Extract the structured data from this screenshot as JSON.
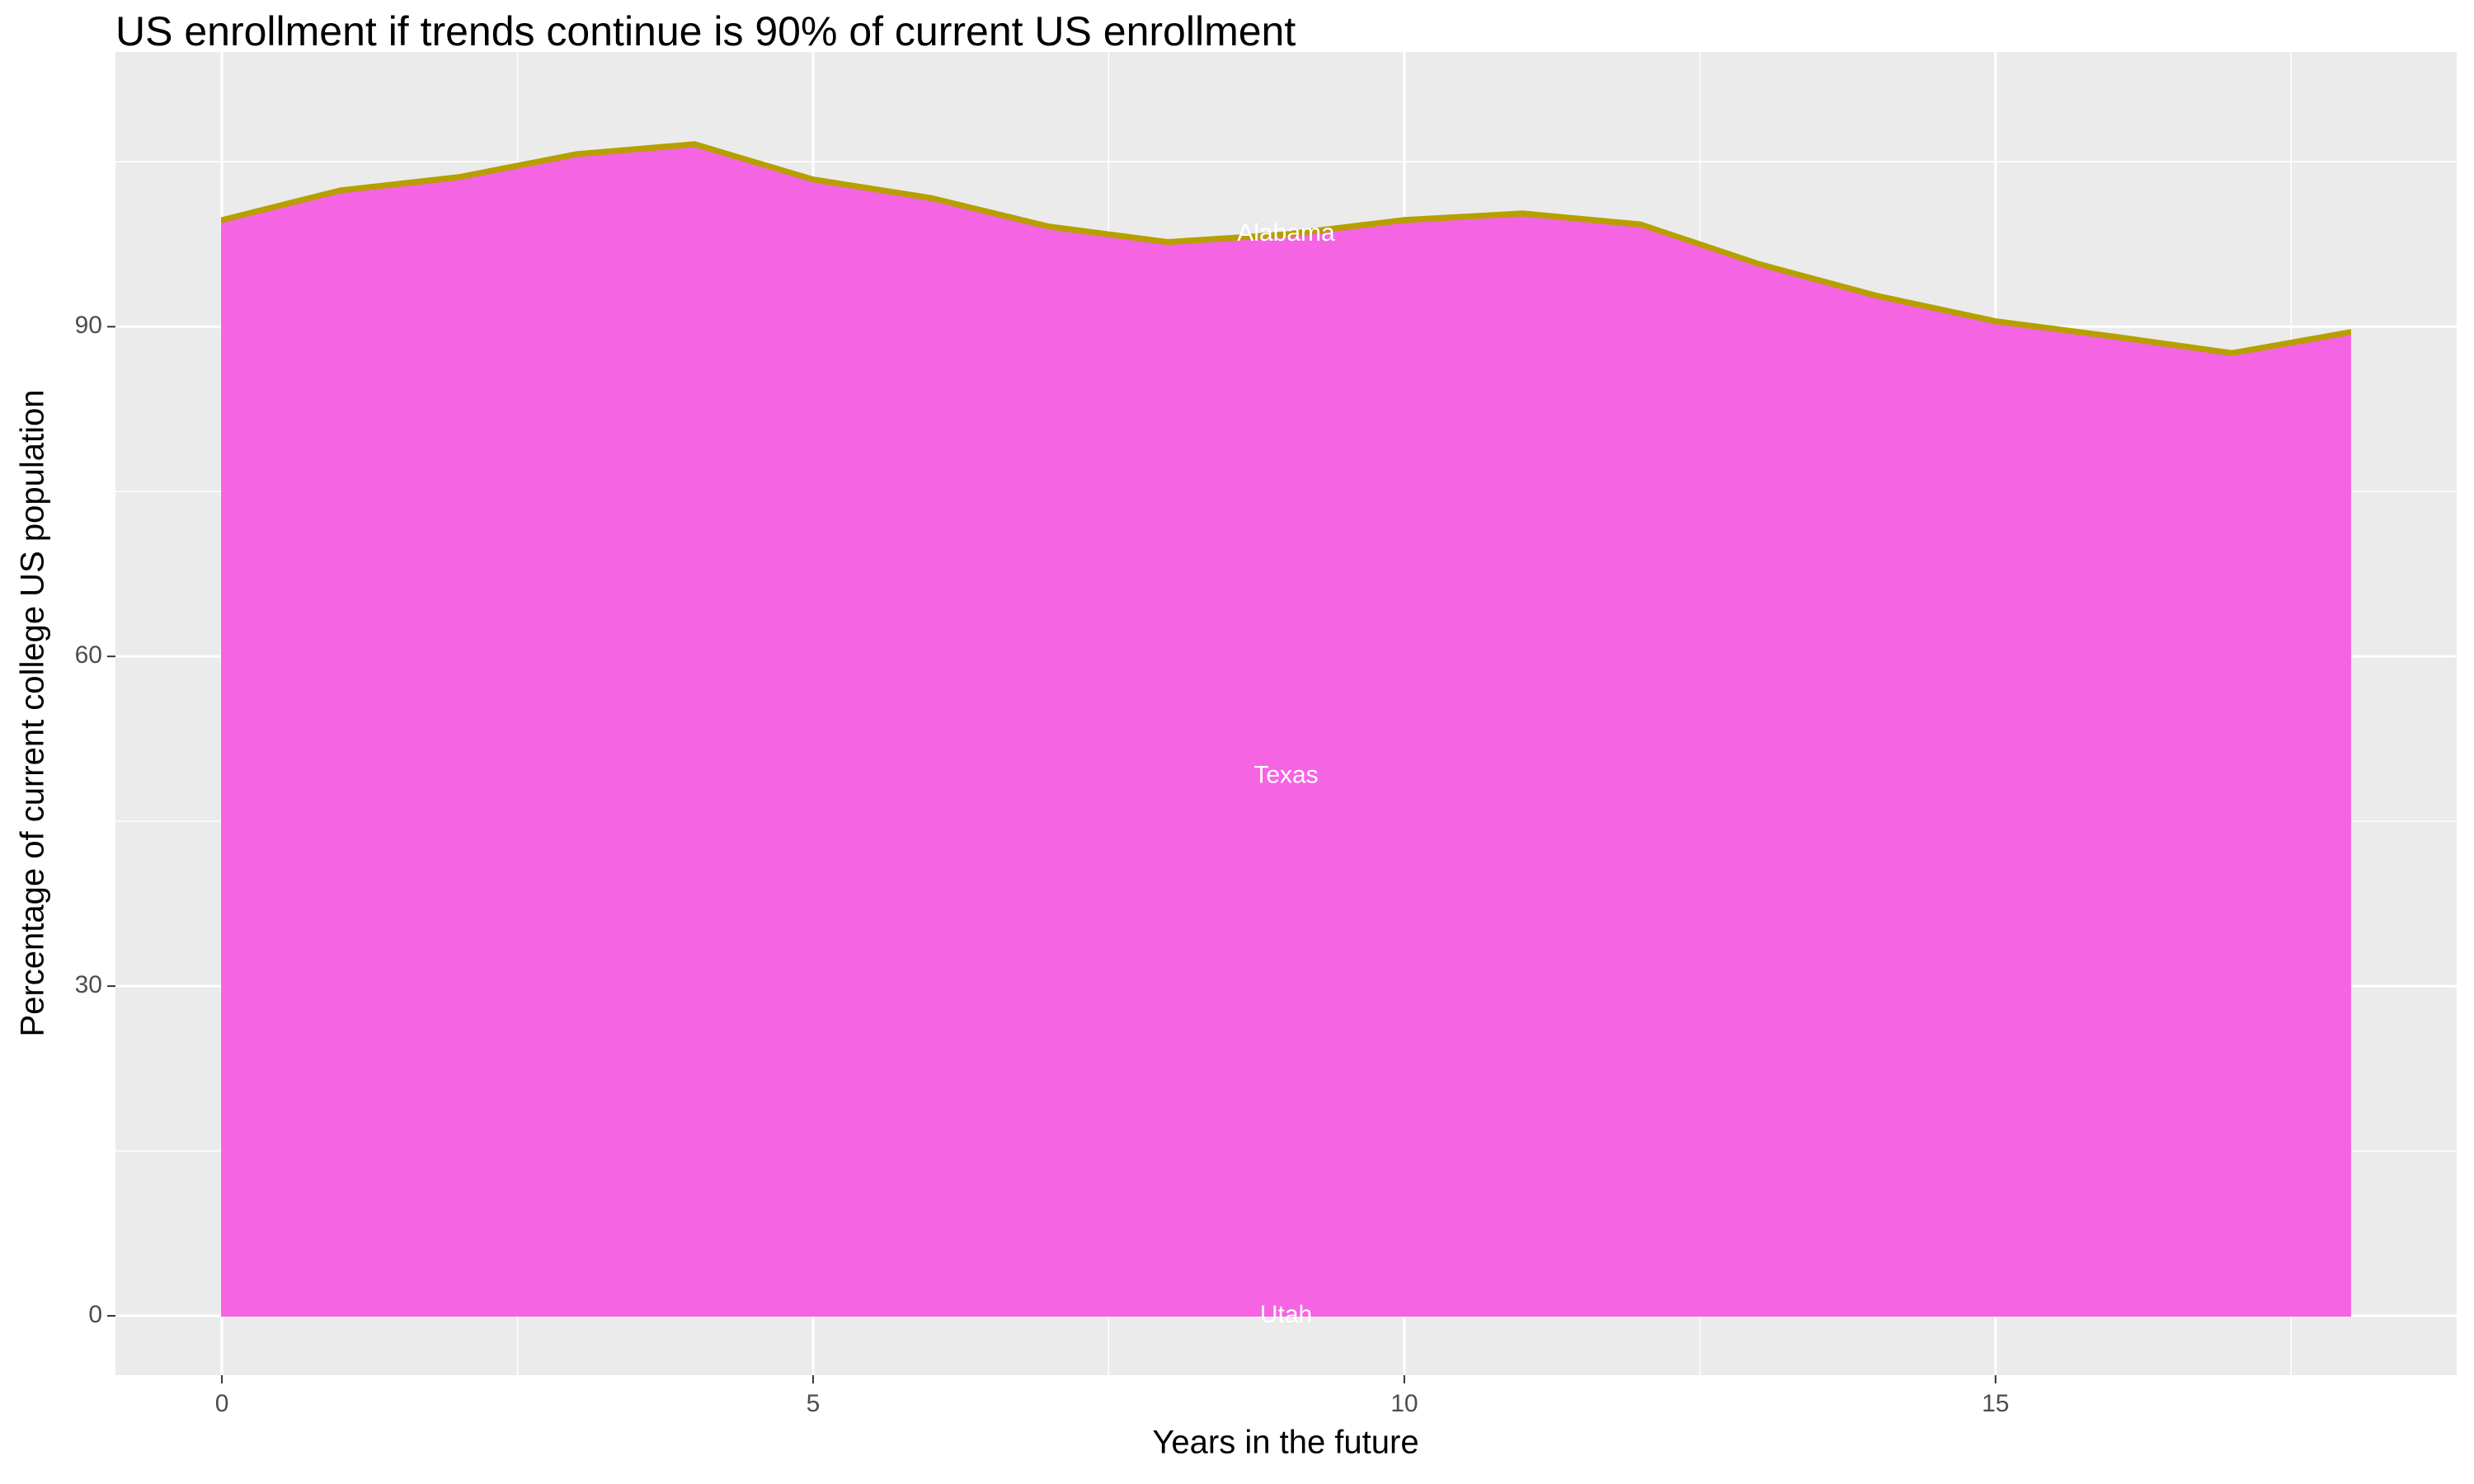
{
  "chart_data": {
    "type": "stacked_area",
    "title": "US enrollment if trends continue is 90% of current US enrollment",
    "x_label": "Years in the future",
    "y_label": "Percentage of current college US population",
    "x": [
      0,
      1,
      2,
      3,
      4,
      5,
      6,
      7,
      8,
      9,
      10,
      11,
      12,
      13,
      14,
      15,
      16,
      17,
      18
    ],
    "series": [
      {
        "name": "Utah",
        "color": "#619CFF",
        "values": [
          0,
          0,
          0,
          0,
          0,
          0,
          0,
          0,
          0,
          0,
          0,
          0,
          0,
          0,
          0,
          0,
          0,
          0,
          0
        ]
      },
      {
        "name": "Texas",
        "color": "#F564E3",
        "values": [
          99.5,
          102.2,
          103.4,
          105.5,
          106.4,
          103.2,
          101.5,
          98.9,
          97.5,
          98.2,
          99.5,
          100.1,
          99.1,
          95.5,
          92.6,
          90.3,
          88.9,
          87.4,
          89.3
        ]
      },
      {
        "name": "Alabama",
        "color": "#B79F00",
        "values": [
          0.4,
          0.4,
          0.4,
          0.4,
          0.4,
          0.4,
          0.4,
          0.4,
          0.4,
          0.4,
          0.4,
          0.4,
          0.4,
          0.4,
          0.4,
          0.4,
          0.4,
          0.4,
          0.4
        ]
      }
    ],
    "label_at": 9,
    "xlim": [
      -0.9,
      18.9
    ],
    "xticks": [
      0,
      5,
      10,
      15
    ],
    "ylim": [
      -5.4,
      115
    ],
    "yticks": [
      0,
      30,
      60,
      90
    ],
    "grid": true
  }
}
